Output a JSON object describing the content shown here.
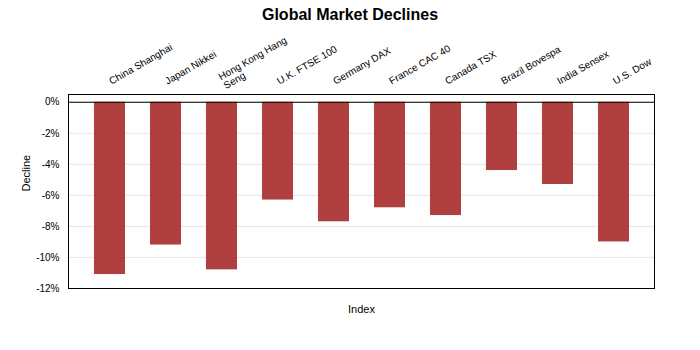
{
  "chart_data": {
    "type": "bar",
    "title": "Global Market Declines",
    "xlabel": "Index",
    "ylabel": "Decline",
    "categories": [
      "China Shanghai",
      "Japan Nikkei",
      "Hong Kong Hang\nSeng",
      "U.K. FTSE 100",
      "Germany DAX",
      "France CAC 40",
      "Canada TSX",
      "Brazil Bovespa",
      "India Sensex",
      "U.S. Dow"
    ],
    "values": [
      -11.1,
      -9.2,
      -10.8,
      -6.3,
      -7.7,
      -6.8,
      -7.3,
      -4.4,
      -5.3,
      -9.0
    ],
    "color": "#b04040",
    "ylim": [
      -12,
      0.5
    ],
    "yticks": [
      {
        "value": 0,
        "label": "0%"
      },
      {
        "value": -2,
        "label": "-2%"
      },
      {
        "value": -4,
        "label": "-4%"
      },
      {
        "value": -6,
        "label": "-6%"
      },
      {
        "value": -8,
        "label": "-8%"
      },
      {
        "value": -10,
        "label": "-10%"
      },
      {
        "value": -12,
        "label": "-12%"
      }
    ],
    "grid": true
  }
}
